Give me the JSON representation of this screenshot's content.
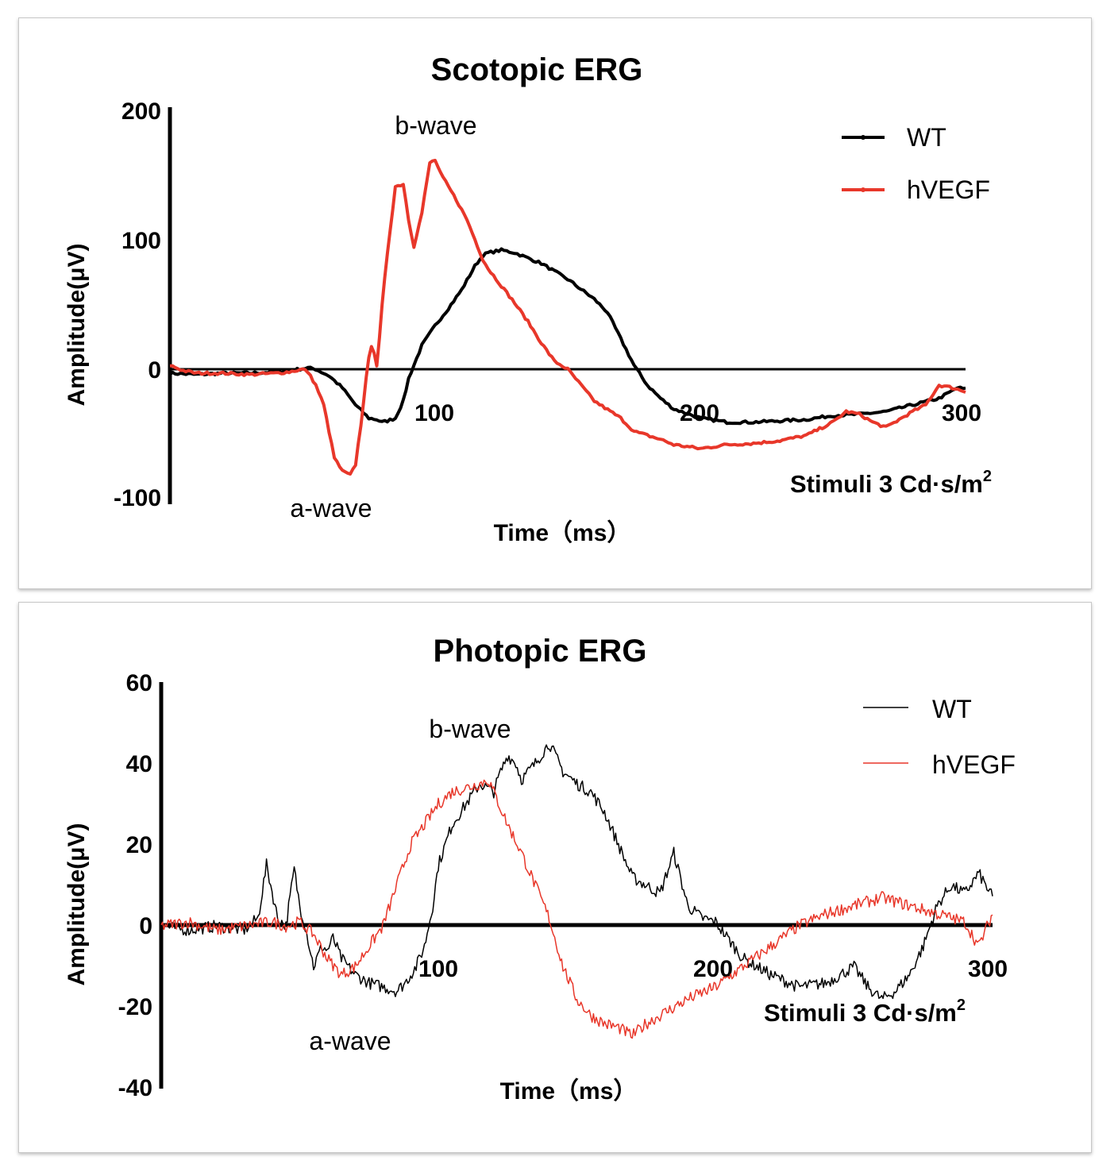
{
  "chart_data": [
    {
      "type": "line",
      "title": "Scotopic ERG",
      "xlabel": "Time（ms）",
      "ylabel": "Amplitude(μV)",
      "xlim": [
        0,
        300
      ],
      "ylim": [
        -100,
        200
      ],
      "x_ticks": [
        "100",
        "200",
        "300"
      ],
      "y_ticks": [
        "200",
        "100",
        "0",
        "-100"
      ],
      "annotations": {
        "b_wave": "b-wave",
        "a_wave": "a-wave",
        "stimulus_prefix": "Stimuli 3 Cd·s/m",
        "stimulus_sup": "2"
      },
      "legend_position": "top-right",
      "series": [
        {
          "name": "WT",
          "color": "#000000",
          "x": [
            0,
            10,
            20,
            30,
            40,
            45,
            52,
            55,
            60,
            65,
            70,
            75,
            78,
            80,
            82,
            85,
            88,
            90,
            95,
            100,
            105,
            110,
            115,
            118,
            120,
            125,
            130,
            140,
            150,
            160,
            165,
            170,
            175,
            180,
            185,
            190,
            200,
            210,
            220,
            230,
            240,
            250,
            260,
            270,
            280,
            290,
            297,
            300
          ],
          "y": [
            -1,
            -2,
            -1,
            -1,
            0,
            1,
            3,
            2,
            -3,
            -12,
            -25,
            -35,
            -36,
            -38,
            -37,
            -35,
            -22,
            -5,
            20,
            35,
            48,
            62,
            80,
            88,
            90,
            92,
            90,
            82,
            70,
            55,
            45,
            25,
            5,
            -10,
            -20,
            -28,
            -35,
            -38,
            -38,
            -37,
            -36,
            -33,
            -32,
            -30,
            -25,
            -20,
            -12,
            -13
          ]
        },
        {
          "name": "hVEGF",
          "color": "#e8372a",
          "x": [
            0,
            5,
            10,
            20,
            30,
            40,
            45,
            50,
            52,
            55,
            58,
            60,
            62,
            65,
            68,
            70,
            72,
            74,
            75,
            76,
            77,
            78,
            79,
            80,
            82,
            85,
            88,
            90,
            92,
            95,
            98,
            100,
            102,
            105,
            108,
            112,
            115,
            118,
            120,
            125,
            130,
            135,
            140,
            145,
            150,
            155,
            160,
            170,
            175,
            180,
            185,
            190,
            200,
            210,
            220,
            230,
            240,
            250,
            255,
            260,
            265,
            270,
            280,
            285,
            290,
            295,
            300
          ],
          "y": [
            5,
            1,
            -1,
            -1,
            -2,
            -1,
            0,
            2,
            0,
            -10,
            -25,
            -45,
            -65,
            -75,
            -78,
            -70,
            -40,
            -5,
            10,
            20,
            15,
            5,
            25,
            50,
            90,
            140,
            142,
            115,
            95,
            120,
            158,
            160,
            150,
            140,
            130,
            115,
            100,
            85,
            78,
            65,
            52,
            38,
            22,
            8,
            2,
            -10,
            -22,
            -35,
            -45,
            -48,
            -51,
            -55,
            -58,
            -55,
            -54,
            -52,
            -48,
            -38,
            -30,
            -32,
            -38,
            -42,
            -30,
            -25,
            -10,
            -12,
            -15
          ]
        }
      ]
    },
    {
      "type": "line",
      "title": "Photopic ERG",
      "xlabel": "Time（ms）",
      "ylabel": "Amplitude(μV)",
      "xlim": [
        0,
        300
      ],
      "ylim": [
        -40,
        60
      ],
      "x_ticks": [
        "100",
        "200",
        "300"
      ],
      "y_ticks": [
        "60",
        "40",
        "20",
        "0",
        "-20",
        "-40"
      ],
      "annotations": {
        "b_wave": "b-wave",
        "a_wave": "a-wave",
        "stimulus_prefix": "Stimuli 3 Cd·s/m",
        "stimulus_sup": "2"
      },
      "legend_position": "top-right",
      "series": [
        {
          "name": "WT",
          "color": "#000000",
          "x": [
            0,
            10,
            20,
            30,
            35,
            38,
            42,
            45,
            48,
            50,
            52,
            55,
            58,
            60,
            62,
            65,
            70,
            75,
            80,
            85,
            88,
            90,
            92,
            95,
            98,
            100,
            105,
            110,
            115,
            120,
            122,
            125,
            128,
            130,
            135,
            140,
            145,
            150,
            155,
            160,
            165,
            170,
            175,
            180,
            185,
            190,
            195,
            200,
            210,
            220,
            230,
            240,
            250,
            255,
            260,
            265,
            270,
            275,
            280,
            285,
            290,
            295,
            300
          ],
          "y": [
            0,
            -1,
            0,
            -1,
            2,
            15,
            2,
            0,
            14,
            5,
            0,
            -10,
            -5,
            -6,
            -3,
            -8,
            -12,
            -14,
            -15,
            -16,
            -14,
            -12,
            -10,
            -5,
            5,
            15,
            25,
            30,
            35,
            33,
            37,
            42,
            40,
            36,
            40,
            45,
            38,
            35,
            33,
            28,
            20,
            12,
            10,
            8,
            18,
            5,
            2,
            1,
            -8,
            -12,
            -15,
            -14,
            -10,
            -15,
            -18,
            -16,
            -12,
            -5,
            5,
            10,
            8,
            13,
            7
          ]
        },
        {
          "name": "hVEGF",
          "color": "#e8372a",
          "x": [
            0,
            10,
            20,
            30,
            40,
            45,
            50,
            55,
            60,
            65,
            70,
            75,
            80,
            85,
            90,
            95,
            100,
            105,
            110,
            115,
            118,
            120,
            125,
            130,
            135,
            140,
            145,
            150,
            155,
            160,
            165,
            170,
            175,
            180,
            190,
            200,
            210,
            220,
            230,
            240,
            250,
            260,
            270,
            280,
            290,
            295,
            300
          ],
          "y": [
            0,
            1,
            -1,
            0,
            1,
            0,
            1,
            -2,
            -8,
            -12,
            -10,
            -5,
            0,
            10,
            20,
            25,
            30,
            33,
            34,
            35,
            36,
            33,
            25,
            18,
            10,
            2,
            -10,
            -18,
            -22,
            -24,
            -25,
            -27,
            -24,
            -22,
            -18,
            -15,
            -10,
            -5,
            0,
            3,
            5,
            7,
            5,
            3,
            1,
            -5,
            3
          ]
        }
      ]
    }
  ]
}
